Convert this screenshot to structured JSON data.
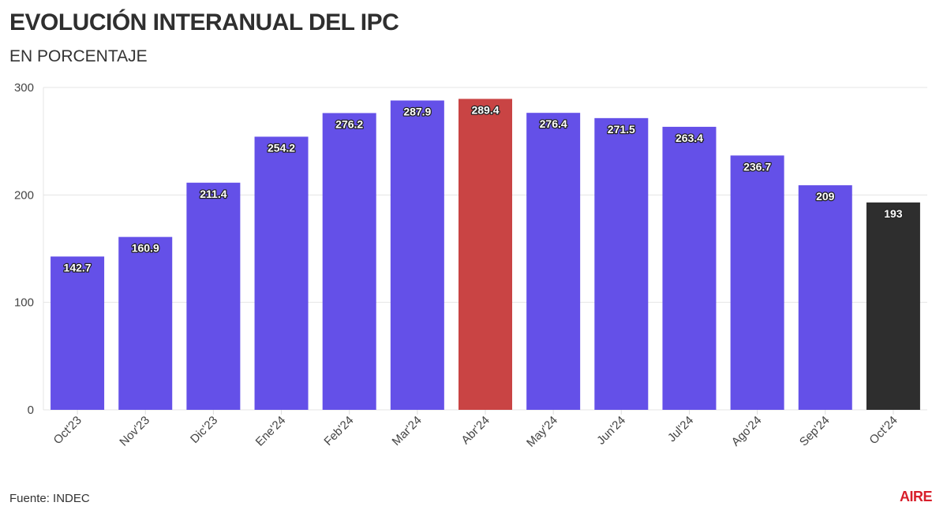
{
  "title": "EVOLUCIÓN INTERANUAL DEL IPC",
  "subtitle": "EN PORCENTAJE",
  "source": "Fuente: INDEC",
  "logo": "AIRE",
  "colors": {
    "default": "#6450E8",
    "highlight": "#C94444",
    "latest": "#2E2E2E"
  },
  "chart_data": {
    "type": "bar",
    "title": "EVOLUCIÓN INTERANUAL DEL IPC",
    "subtitle": "EN PORCENTAJE",
    "xlabel": "",
    "ylabel": "",
    "ylim": [
      0,
      300
    ],
    "yticks": [
      0,
      100,
      200,
      300
    ],
    "grid": true,
    "categories": [
      "Oct'23",
      "Nov'23",
      "Dic'23",
      "Ene'24",
      "Feb'24",
      "Mar'24",
      "Abr'24",
      "May'24",
      "Jun'24",
      "Jul'24",
      "Ago'24",
      "Sep'24",
      "Oct'24"
    ],
    "values": [
      142.7,
      160.9,
      211.4,
      254.2,
      276.2,
      287.9,
      289.4,
      276.4,
      271.5,
      263.4,
      236.7,
      209,
      193
    ],
    "bar_colors": [
      "default",
      "default",
      "default",
      "default",
      "default",
      "default",
      "highlight",
      "default",
      "default",
      "default",
      "default",
      "default",
      "latest"
    ]
  }
}
